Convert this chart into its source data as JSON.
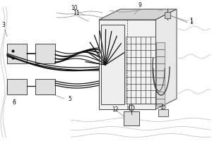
{
  "bg_color": "#ffffff",
  "lc": "#444444",
  "lc_dark": "#111111",
  "lc_gray": "#888888",
  "lc_light": "#bbbbbb",
  "fig_width": 3.0,
  "fig_height": 2.0,
  "dpi": 100,
  "box_face": "#e8e8e8",
  "box_face2": "#d4d4d4",
  "box_face3": "#f2f2f2"
}
